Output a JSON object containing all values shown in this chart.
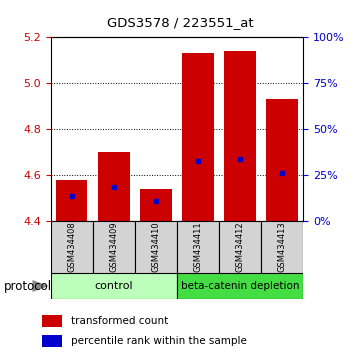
{
  "title": "GDS3578 / 223551_at",
  "samples": [
    "GSM434408",
    "GSM434409",
    "GSM434410",
    "GSM434411",
    "GSM434412",
    "GSM434413"
  ],
  "bar_values": [
    4.58,
    4.7,
    4.54,
    5.13,
    5.14,
    4.93
  ],
  "blue_markers": [
    4.51,
    4.55,
    4.49,
    4.66,
    4.67,
    4.61
  ],
  "bar_bottom": 4.4,
  "ylim": [
    4.4,
    5.2
  ],
  "yticks_left": [
    4.4,
    4.6,
    4.8,
    5.0,
    5.2
  ],
  "yticks_right": [
    0,
    25,
    50,
    75,
    100
  ],
  "bar_color": "#cc0000",
  "blue_color": "#0000cc",
  "control_color": "#bbffbb",
  "treatment_color": "#44ee44",
  "protocol_label": "protocol",
  "legend_red": "transformed count",
  "legend_blue": "percentile rank within the sample",
  "left_tick_color": "#cc0000",
  "right_tick_color": "#0000cc"
}
